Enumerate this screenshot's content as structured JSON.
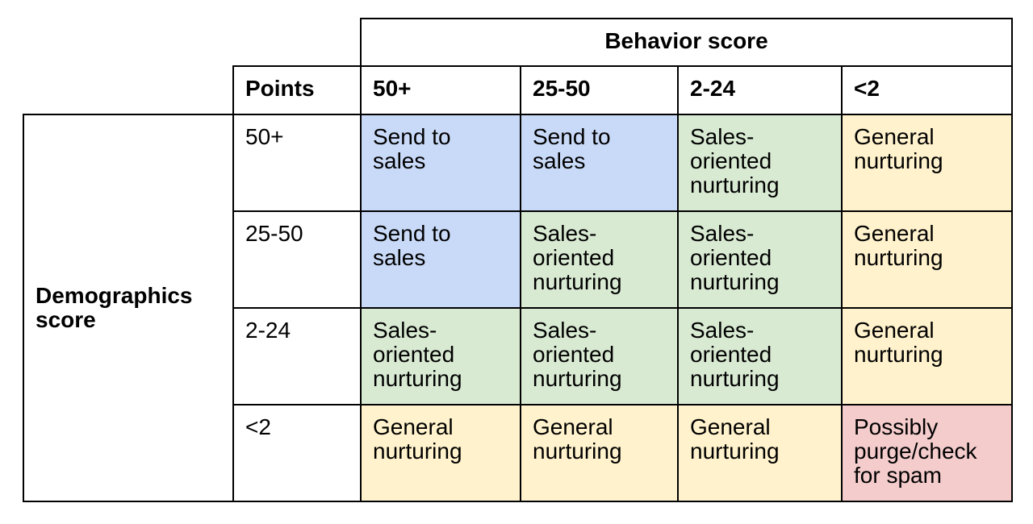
{
  "header": {
    "title": "Behavior score",
    "points_label": "Points",
    "columns": [
      "50+",
      "25-50",
      "2-24",
      "<2"
    ]
  },
  "row_header": [
    "Demographics",
    "score"
  ],
  "rows": [
    {
      "label": "50+",
      "cells": [
        [
          "Send to",
          "sales"
        ],
        [
          "Send to",
          "sales"
        ],
        [
          "Sales-",
          "oriented",
          "nurturing"
        ],
        [
          "General",
          "nurturing"
        ]
      ]
    },
    {
      "label": "25-50",
      "cells": [
        [
          "Send to",
          "sales"
        ],
        [
          "Sales-",
          "oriented",
          "nurturing"
        ],
        [
          "Sales-",
          "oriented",
          "nurturing"
        ],
        [
          "General",
          "nurturing"
        ]
      ]
    },
    {
      "label": "2-24",
      "cells": [
        [
          "Sales-",
          "oriented",
          "nurturing"
        ],
        [
          "Sales-",
          "oriented",
          "nurturing"
        ],
        [
          "Sales-",
          "oriented",
          "nurturing"
        ],
        [
          "General",
          "nurturing"
        ]
      ]
    },
    {
      "label": "<2",
      "cells": [
        [
          "General",
          "nurturing"
        ],
        [
          "General",
          "nurturing"
        ],
        [
          "General",
          "nurturing"
        ],
        [
          "Possibly",
          "purge/check",
          "for spam"
        ]
      ]
    }
  ]
}
